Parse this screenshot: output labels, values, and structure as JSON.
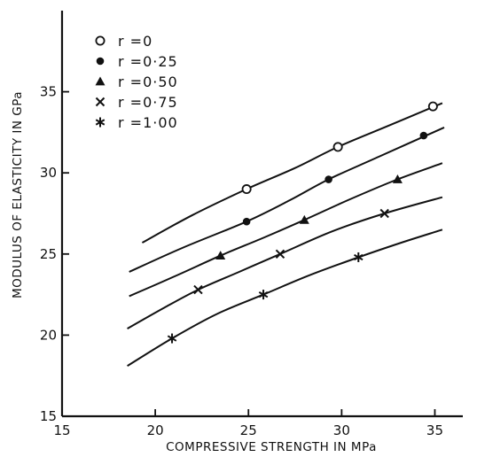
{
  "chart_data": {
    "type": "line",
    "xlabel": "COMPRESSIVE STRENGTH IN MPa",
    "ylabel": "MODULUS OF ELASTICITY IN GPa",
    "xlim": [
      15,
      36.5
    ],
    "ylim": [
      15,
      40
    ],
    "x_ticks": [
      "15",
      "20",
      "25",
      "30",
      "35"
    ],
    "y_ticks": [
      "15",
      "20",
      "25",
      "30",
      "35"
    ],
    "legend_position": "top-left",
    "grid": false,
    "series": [
      {
        "name": "r =0",
        "marker": "open-circle",
        "points": [
          [
            24.9,
            29
          ],
          [
            29.8,
            31.6
          ],
          [
            34.9,
            34.1
          ]
        ],
        "curve": [
          [
            19.3,
            25.7
          ],
          [
            22,
            27.4
          ],
          [
            24.9,
            29.0
          ],
          [
            27.5,
            30.3
          ],
          [
            29.8,
            31.6
          ],
          [
            32.5,
            32.9
          ],
          [
            35.4,
            34.3
          ]
        ]
      },
      {
        "name": "r =0·25",
        "marker": "filled-circle",
        "points": [
          [
            24.9,
            27
          ],
          [
            29.3,
            29.6
          ],
          [
            34.4,
            32.3
          ]
        ],
        "curve": [
          [
            18.6,
            23.9
          ],
          [
            21.5,
            25.4
          ],
          [
            24.9,
            27.0
          ],
          [
            27.2,
            28.3
          ],
          [
            29.3,
            29.6
          ],
          [
            32.0,
            31.0
          ],
          [
            35.5,
            32.8
          ]
        ]
      },
      {
        "name": "r =0·50",
        "marker": "filled-triangle",
        "points": [
          [
            23.5,
            24.9
          ],
          [
            28.0,
            27.1
          ],
          [
            33.0,
            29.6
          ]
        ],
        "curve": [
          [
            18.6,
            22.4
          ],
          [
            21.0,
            23.6
          ],
          [
            23.5,
            24.9
          ],
          [
            25.8,
            26.0
          ],
          [
            28.0,
            27.1
          ],
          [
            30.5,
            28.4
          ],
          [
            33.0,
            29.6
          ],
          [
            35.4,
            30.6
          ]
        ]
      },
      {
        "name": "r =0·75",
        "marker": "x",
        "points": [
          [
            22.3,
            22.8
          ],
          [
            26.7,
            25.0
          ],
          [
            32.3,
            27.5
          ]
        ],
        "curve": [
          [
            18.5,
            20.4
          ],
          [
            20.5,
            21.7
          ],
          [
            22.3,
            22.8
          ],
          [
            24.5,
            23.9
          ],
          [
            26.7,
            25.0
          ],
          [
            29.5,
            26.4
          ],
          [
            32.3,
            27.5
          ],
          [
            35.4,
            28.5
          ]
        ]
      },
      {
        "name": "r =1·00",
        "marker": "asterisk",
        "points": [
          [
            20.9,
            19.8
          ],
          [
            25.8,
            22.5
          ],
          [
            30.9,
            24.8
          ]
        ],
        "curve": [
          [
            18.5,
            18.1
          ],
          [
            20.9,
            19.8
          ],
          [
            23.3,
            21.3
          ],
          [
            25.8,
            22.5
          ],
          [
            28.3,
            23.7
          ],
          [
            30.9,
            24.8
          ],
          [
            33.2,
            25.7
          ],
          [
            35.4,
            26.5
          ]
        ]
      }
    ]
  }
}
